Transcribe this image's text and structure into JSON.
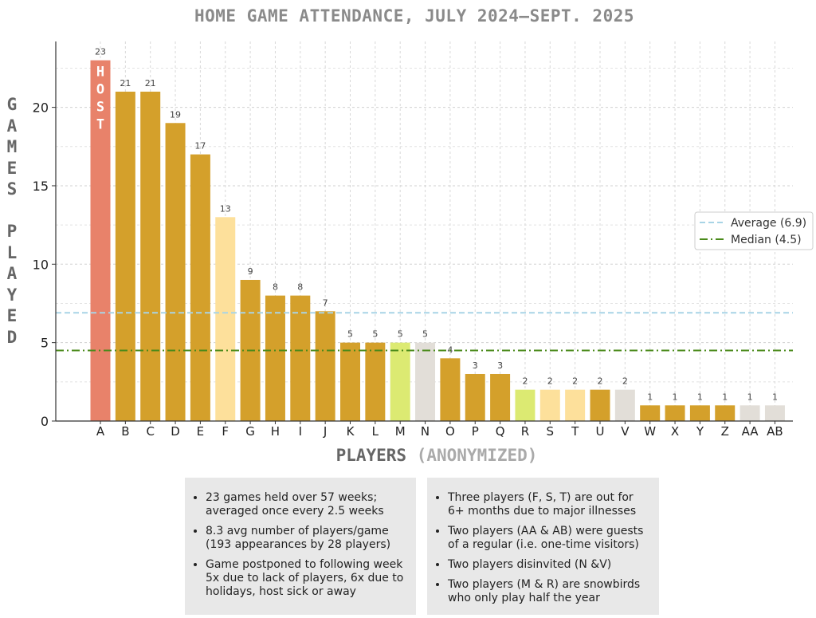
{
  "chart_data": {
    "type": "bar",
    "title": "HOME GAME ATTENDANCE, JULY 2024–SEPT. 2025",
    "xlabel_main": "PLAYERS",
    "xlabel_sub": "(ANONYMIZED)",
    "ylabel": "GAMES PLAYED",
    "ylim": [
      0,
      24
    ],
    "yticks": [
      0,
      5,
      10,
      15,
      20
    ],
    "grid": true,
    "categories": [
      "A",
      "B",
      "C",
      "D",
      "E",
      "F",
      "G",
      "H",
      "I",
      "J",
      "K",
      "L",
      "M",
      "N",
      "O",
      "P",
      "Q",
      "R",
      "S",
      "T",
      "U",
      "V",
      "W",
      "X",
      "Y",
      "Z",
      "AA",
      "AB"
    ],
    "values": [
      23,
      21,
      21,
      19,
      17,
      13,
      9,
      8,
      8,
      7,
      5,
      5,
      5,
      5,
      4,
      3,
      3,
      2,
      2,
      2,
      2,
      2,
      1,
      1,
      1,
      1,
      1,
      1
    ],
    "bar_colors": [
      "#e8826a",
      "#d4a02b",
      "#d4a02b",
      "#d4a02b",
      "#d4a02b",
      "#fde09b",
      "#d4a02b",
      "#d4a02b",
      "#d4a02b",
      "#d4a02b",
      "#d4a02b",
      "#d4a02b",
      "#dcea72",
      "#e2ded8",
      "#d4a02b",
      "#d4a02b",
      "#d4a02b",
      "#dcea72",
      "#fde09b",
      "#fde09b",
      "#d4a02b",
      "#e2ded8",
      "#d4a02b",
      "#d4a02b",
      "#d4a02b",
      "#d4a02b",
      "#e2ded8",
      "#e2ded8"
    ],
    "host_label": "HOST",
    "reference_lines": [
      {
        "name": "Average (6.9)",
        "value": 6.9,
        "color": "#a8d4e6",
        "style": "dashed"
      },
      {
        "name": "Median (4.5)",
        "value": 4.5,
        "color": "#4a8a1a",
        "style": "dashdot"
      }
    ],
    "legend_position": "right"
  },
  "notes": {
    "left": [
      "23 games held over 57 weeks; averaged once every 2.5 weeks",
      "8.3 avg number of players/game (193 appearances by 28 players)",
      "Game postponed to following week 5x due to lack of players, 6x due to holidays, host sick or away"
    ],
    "right": [
      "Three players (F, S, T) are out for 6+ months due to major illnesses",
      "Two players (AA & AB) were guests of a regular (i.e. one-time visitors)",
      "Two players disinvited (N &V)",
      "Two players (M & R) are snowbirds who only play half the year"
    ]
  }
}
